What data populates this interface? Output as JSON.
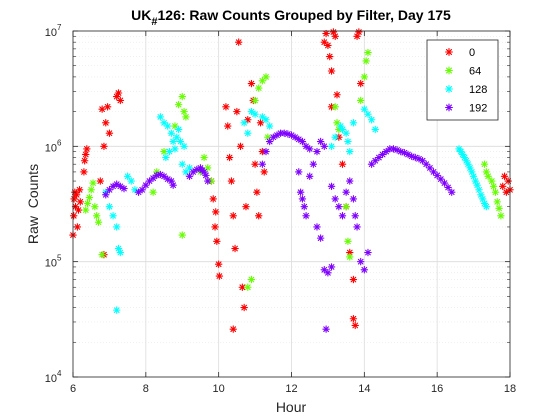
{
  "chart_data": {
    "type": "scatter",
    "title": {
      "prefix": "UK",
      "subscript": "#",
      "rest": "126: Raw Counts Grouped by Filter, Day 175"
    },
    "xlabel": "Hour",
    "ylabel": "Raw  Counts",
    "xlim": [
      6,
      18
    ],
    "ylim": [
      10000,
      10000000
    ],
    "yscale": "log",
    "grid": true,
    "minor_grid": true,
    "legend_position": "top-right",
    "x_ticks": [
      "6",
      "8",
      "10",
      "12",
      "14",
      "16",
      "18"
    ],
    "y_ticks": [
      {
        "base": "10",
        "exp": "4",
        "value": 10000
      },
      {
        "base": "10",
        "exp": "5",
        "value": 100000
      },
      {
        "base": "10",
        "exp": "6",
        "value": 1000000
      },
      {
        "base": "10",
        "exp": "7",
        "value": 10000000
      }
    ],
    "series": [
      {
        "name": "0",
        "color": "#ff0000",
        "marker": "asterisk",
        "points": [
          [
            6.0,
            170000
          ],
          [
            6.02,
            250000
          ],
          [
            6.03,
            350000
          ],
          [
            6.05,
            400000
          ],
          [
            6.07,
            300000
          ],
          [
            6.1,
            380000
          ],
          [
            6.12,
            200000
          ],
          [
            6.15,
            280000
          ],
          [
            6.18,
            420000
          ],
          [
            6.2,
            330000
          ],
          [
            6.3,
            600000
          ],
          [
            6.32,
            750000
          ],
          [
            6.35,
            850000
          ],
          [
            6.38,
            950000
          ],
          [
            6.8,
            2100000
          ],
          [
            6.85,
            1000000
          ],
          [
            6.9,
            1600000
          ],
          [
            6.95,
            2200000
          ],
          [
            7.0,
            1300000
          ],
          [
            6.85,
            115000
          ],
          [
            6.75,
            500000
          ],
          [
            7.2,
            2700000
          ],
          [
            7.25,
            2900000
          ],
          [
            7.3,
            2500000
          ],
          [
            9.8,
            500000
          ],
          [
            9.85,
            350000
          ],
          [
            9.9,
            200000
          ],
          [
            9.95,
            150000
          ],
          [
            10.0,
            95000
          ],
          [
            9.92,
            270000
          ],
          [
            10.02,
            75000
          ],
          [
            10.2,
            2200000
          ],
          [
            10.25,
            1500000
          ],
          [
            10.3,
            800000
          ],
          [
            10.35,
            500000
          ],
          [
            10.4,
            250000
          ],
          [
            10.45,
            130000
          ],
          [
            10.5,
            2000000
          ],
          [
            10.55,
            8000000
          ],
          [
            10.6,
            1000000
          ],
          [
            10.65,
            60000
          ],
          [
            10.7,
            40000
          ],
          [
            10.75,
            300000
          ],
          [
            10.4,
            26000
          ],
          [
            10.8,
            1700000
          ],
          [
            10.9,
            3500000
          ],
          [
            10.95,
            2500000
          ],
          [
            11.0,
            700000
          ],
          [
            11.05,
            400000
          ],
          [
            11.1,
            250000
          ],
          [
            11.15,
            1600000
          ],
          [
            11.2,
            900000
          ],
          [
            11.25,
            600000
          ],
          [
            12.9,
            8000000
          ],
          [
            12.95,
            9500000
          ],
          [
            13.0,
            7500000
          ],
          [
            13.05,
            6000000
          ],
          [
            13.1,
            4500000
          ],
          [
            13.15,
            9800000
          ],
          [
            13.2,
            9000000
          ],
          [
            13.25,
            2800000
          ],
          [
            13.1,
            2200000
          ],
          [
            13.3,
            1200000
          ],
          [
            13.4,
            700000
          ],
          [
            13.5,
            300000
          ],
          [
            13.6,
            120000
          ],
          [
            13.7,
            70000
          ],
          [
            13.8,
            9000000
          ],
          [
            13.85,
            9800000
          ],
          [
            13.9,
            3500000
          ],
          [
            13.7,
            32000
          ],
          [
            13.75,
            28000
          ],
          [
            17.8,
            450000
          ],
          [
            17.85,
            550000
          ],
          [
            17.9,
            400000
          ],
          [
            17.95,
            500000
          ],
          [
            18.0,
            420000
          ]
        ]
      },
      {
        "name": "64",
        "color": "#66ff00",
        "marker": "asterisk",
        "points": [
          [
            6.35,
            280000
          ],
          [
            6.4,
            320000
          ],
          [
            6.45,
            360000
          ],
          [
            6.5,
            420000
          ],
          [
            6.55,
            480000
          ],
          [
            6.6,
            300000
          ],
          [
            6.65,
            250000
          ],
          [
            6.7,
            220000
          ],
          [
            6.8,
            115000
          ],
          [
            8.2,
            400000
          ],
          [
            8.3,
            600000
          ],
          [
            8.5,
            900000
          ],
          [
            8.8,
            1500000
          ],
          [
            8.9,
            2300000
          ],
          [
            9.0,
            2700000
          ],
          [
            9.05,
            2000000
          ],
          [
            9.1,
            1800000
          ],
          [
            9.0,
            170000
          ],
          [
            9.5,
            600000
          ],
          [
            9.6,
            800000
          ],
          [
            9.7,
            650000
          ],
          [
            9.8,
            500000
          ],
          [
            10.8,
            60000
          ],
          [
            10.9,
            70000
          ],
          [
            11.0,
            2500000
          ],
          [
            11.1,
            3200000
          ],
          [
            11.2,
            3700000
          ],
          [
            11.3,
            4000000
          ],
          [
            11.35,
            1200000
          ],
          [
            13.2,
            2200000
          ],
          [
            13.25,
            1600000
          ],
          [
            13.3,
            1400000
          ],
          [
            13.5,
            300000
          ],
          [
            13.55,
            150000
          ],
          [
            13.6,
            110000
          ],
          [
            13.9,
            2500000
          ],
          [
            14.0,
            4000000
          ],
          [
            14.05,
            5500000
          ],
          [
            14.1,
            6500000
          ],
          [
            17.3,
            700000
          ],
          [
            17.35,
            600000
          ],
          [
            17.4,
            550000
          ],
          [
            17.5,
            500000
          ],
          [
            17.55,
            450000
          ],
          [
            17.6,
            400000
          ],
          [
            17.65,
            330000
          ],
          [
            17.7,
            290000
          ],
          [
            17.75,
            250000
          ]
        ]
      },
      {
        "name": "128",
        "color": "#00ffff",
        "marker": "asterisk",
        "points": [
          [
            6.9,
            400000
          ],
          [
            7.0,
            300000
          ],
          [
            7.1,
            250000
          ],
          [
            7.2,
            200000
          ],
          [
            7.25,
            130000
          ],
          [
            7.3,
            120000
          ],
          [
            7.2,
            38000
          ],
          [
            7.5,
            550000
          ],
          [
            7.6,
            500000
          ],
          [
            7.7,
            420000
          ],
          [
            8.4,
            1800000
          ],
          [
            8.5,
            1600000
          ],
          [
            8.6,
            1500000
          ],
          [
            8.7,
            1300000
          ],
          [
            8.75,
            1100000
          ],
          [
            8.8,
            950000
          ],
          [
            8.85,
            1200000
          ],
          [
            8.9,
            1400000
          ],
          [
            9.0,
            700000
          ],
          [
            9.1,
            600000
          ],
          [
            9.2,
            650000
          ],
          [
            8.95,
            1100000
          ],
          [
            9.05,
            1000000
          ],
          [
            8.55,
            800000
          ],
          [
            8.65,
            900000
          ],
          [
            10.9,
            2000000
          ],
          [
            11.0,
            1900000
          ],
          [
            11.2,
            1800000
          ],
          [
            11.3,
            1700000
          ],
          [
            11.4,
            1500000
          ],
          [
            10.7,
            1600000
          ],
          [
            10.8,
            1300000
          ],
          [
            13.1,
            1000000
          ],
          [
            13.2,
            1200000
          ],
          [
            13.35,
            1500000
          ],
          [
            13.4,
            1400000
          ],
          [
            13.5,
            1300000
          ],
          [
            13.55,
            1100000
          ],
          [
            13.6,
            900000
          ],
          [
            13.7,
            1600000
          ],
          [
            14.0,
            2100000
          ],
          [
            14.1,
            1900000
          ],
          [
            14.2,
            1700000
          ],
          [
            14.3,
            1400000
          ],
          [
            16.6,
            950000
          ],
          [
            16.65,
            900000
          ],
          [
            16.7,
            850000
          ],
          [
            16.75,
            800000
          ],
          [
            16.8,
            750000
          ],
          [
            16.85,
            700000
          ],
          [
            16.9,
            650000
          ],
          [
            16.95,
            600000
          ],
          [
            17.0,
            550000
          ],
          [
            17.05,
            500000
          ],
          [
            17.1,
            460000
          ],
          [
            17.15,
            420000
          ],
          [
            17.2,
            380000
          ],
          [
            17.25,
            350000
          ],
          [
            17.3,
            320000
          ],
          [
            17.35,
            300000
          ]
        ]
      },
      {
        "name": "192",
        "color": "#7f00ff",
        "marker": "asterisk",
        "points": [
          [
            6.9,
            380000
          ],
          [
            7.0,
            420000
          ],
          [
            7.1,
            450000
          ],
          [
            7.2,
            470000
          ],
          [
            7.3,
            450000
          ],
          [
            7.4,
            430000
          ],
          [
            7.8,
            400000
          ],
          [
            7.9,
            420000
          ],
          [
            8.0,
            460000
          ],
          [
            8.1,
            500000
          ],
          [
            8.2,
            530000
          ],
          [
            8.3,
            560000
          ],
          [
            8.4,
            570000
          ],
          [
            8.5,
            550000
          ],
          [
            8.6,
            520000
          ],
          [
            8.7,
            500000
          ],
          [
            8.75,
            460000
          ],
          [
            9.2,
            550000
          ],
          [
            9.3,
            600000
          ],
          [
            9.4,
            630000
          ],
          [
            9.5,
            650000
          ],
          [
            9.55,
            620000
          ],
          [
            9.6,
            600000
          ],
          [
            9.65,
            560000
          ],
          [
            9.7,
            500000
          ],
          [
            11.2,
            700000
          ],
          [
            11.3,
            900000
          ],
          [
            11.4,
            1100000
          ],
          [
            11.5,
            1200000
          ],
          [
            11.6,
            1250000
          ],
          [
            11.7,
            1300000
          ],
          [
            11.8,
            1300000
          ],
          [
            11.9,
            1280000
          ],
          [
            12.0,
            1250000
          ],
          [
            12.1,
            1200000
          ],
          [
            12.2,
            1150000
          ],
          [
            12.3,
            1100000
          ],
          [
            12.4,
            1000000
          ],
          [
            12.5,
            950000
          ],
          [
            12.2,
            600000
          ],
          [
            12.25,
            400000
          ],
          [
            12.3,
            350000
          ],
          [
            12.35,
            300000
          ],
          [
            12.4,
            250000
          ],
          [
            12.5,
            550000
          ],
          [
            12.6,
            700000
          ],
          [
            12.7,
            900000
          ],
          [
            12.8,
            1100000
          ],
          [
            12.9,
            1000000
          ],
          [
            12.9,
            85000
          ],
          [
            13.0,
            80000
          ],
          [
            13.1,
            90000
          ],
          [
            12.7,
            200000
          ],
          [
            12.8,
            160000
          ],
          [
            12.95,
            26000
          ],
          [
            13.1,
            450000
          ],
          [
            13.2,
            350000
          ],
          [
            13.3,
            300000
          ],
          [
            13.4,
            250000
          ],
          [
            13.5,
            400000
          ],
          [
            13.6,
            500000
          ],
          [
            13.7,
            350000
          ],
          [
            13.75,
            250000
          ],
          [
            13.8,
            200000
          ],
          [
            13.9,
            100000
          ],
          [
            14.0,
            85000
          ],
          [
            14.1,
            120000
          ],
          [
            14.2,
            700000
          ],
          [
            14.3,
            750000
          ],
          [
            14.4,
            800000
          ],
          [
            14.5,
            850000
          ],
          [
            14.6,
            900000
          ],
          [
            14.7,
            950000
          ],
          [
            14.8,
            950000
          ],
          [
            14.9,
            930000
          ],
          [
            15.0,
            900000
          ],
          [
            15.1,
            880000
          ],
          [
            15.2,
            850000
          ],
          [
            15.3,
            820000
          ],
          [
            15.4,
            800000
          ],
          [
            15.5,
            780000
          ],
          [
            15.6,
            750000
          ],
          [
            15.7,
            700000
          ],
          [
            15.8,
            650000
          ],
          [
            15.9,
            600000
          ],
          [
            16.0,
            560000
          ],
          [
            16.1,
            520000
          ],
          [
            16.2,
            480000
          ],
          [
            16.3,
            440000
          ],
          [
            16.4,
            400000
          ]
        ]
      }
    ]
  }
}
